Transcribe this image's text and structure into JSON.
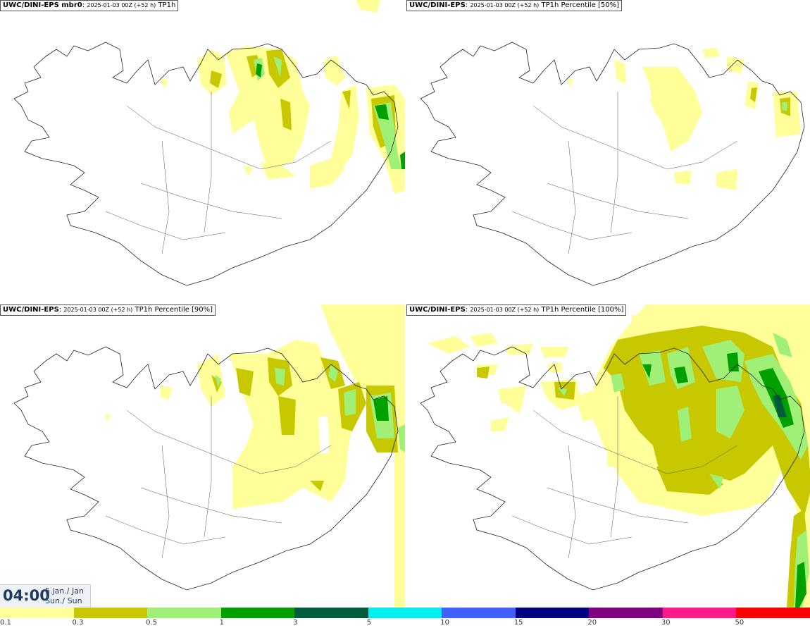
{
  "panels": [
    {
      "id": "mbr0",
      "title_bold": "UWC/DINI-EPS mbr0",
      "title_date": "2025-01-03 00Z (+52 h)",
      "title_field": "TP1h"
    },
    {
      "id": "p50",
      "title_bold": "UWC/DINI-EPS",
      "title_date": "2025-01-03 00Z (+52 h)",
      "title_field": "TP1h Percentile [50%]"
    },
    {
      "id": "p90",
      "title_bold": "UWC/DINI-EPS",
      "title_date": "2025-01-03 00Z (+52 h)",
      "title_field": "TP1h Percentile [90%]"
    },
    {
      "id": "p100",
      "title_bold": "UWC/DINI-EPS",
      "title_date": "2025-01-03 00Z (+52 h)",
      "title_field": "TP1h Percentile [100%]"
    }
  ],
  "clock": {
    "time": "04:00",
    "date_line1": "5.jan./ Jan",
    "date_line2": "Sun./ Sun"
  },
  "legend": {
    "colors": [
      "#ffff99",
      "#c8c800",
      "#a0f078",
      "#00a000",
      "#005c3c",
      "#00f0f0",
      "#4060ff",
      "#000080",
      "#800080",
      "#ff1a8c",
      "#ff0000"
    ],
    "labels": [
      "0.1",
      "0.3",
      "0.5",
      "1",
      "3",
      "5",
      "10",
      "15",
      "20",
      "30",
      "50"
    ]
  },
  "map_colors": {
    "light_yellow": "#ffff99",
    "olive": "#c8c800",
    "light_green": "#a0f078",
    "green": "#00a000",
    "dark_green": "#005c3c",
    "coast": "#222222"
  }
}
